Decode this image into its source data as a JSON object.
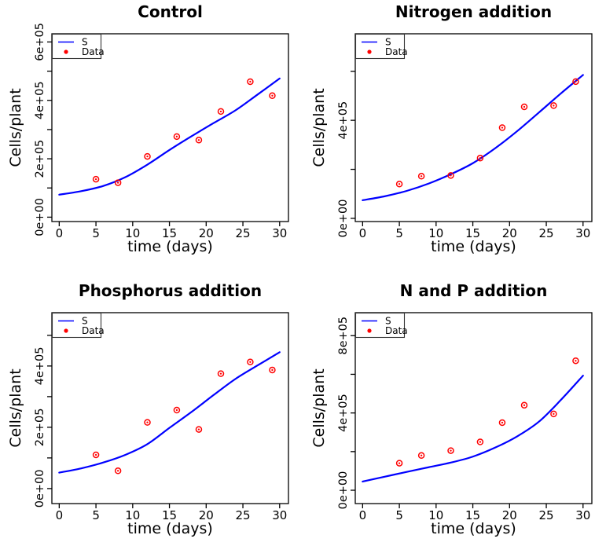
{
  "figure": {
    "background": "#ffffff",
    "text_color": "#000000",
    "curve_color": "#0000ff",
    "point_color": "#ff0000"
  },
  "chart_data": [
    {
      "type": "line",
      "title": "Control",
      "xlabel": "time (days)",
      "ylabel": "Cells/plant",
      "xlim": [
        -1,
        31.2
      ],
      "ylim": [
        -15000,
        628000
      ],
      "grid": false,
      "x_ticks": [
        {
          "v": 0,
          "label": "0"
        },
        {
          "v": 5,
          "label": "5"
        },
        {
          "v": 10,
          "label": "10"
        },
        {
          "v": 15,
          "label": "15"
        },
        {
          "v": 20,
          "label": "20"
        },
        {
          "v": 25,
          "label": "25"
        },
        {
          "v": 30,
          "label": "30"
        }
      ],
      "y_ticks": [
        {
          "v": 0,
          "label": "0e+00"
        },
        {
          "v": 100000,
          "label": ""
        },
        {
          "v": 200000,
          "label": "2e+05"
        },
        {
          "v": 300000,
          "label": ""
        },
        {
          "v": 400000,
          "label": "4e+05"
        },
        {
          "v": 500000,
          "label": ""
        },
        {
          "v": 600000,
          "label": "6e+05"
        }
      ],
      "legend": {
        "position": "topleft",
        "entries": [
          {
            "label": "S",
            "marker": "line",
            "color": "#0000ff"
          },
          {
            "label": "Data",
            "marker": "point",
            "color": "#ff0000"
          }
        ]
      },
      "series": [
        {
          "name": "S",
          "kind": "line",
          "color": "#0000ff",
          "x": [
            0,
            3,
            6,
            9,
            12,
            15,
            18,
            21,
            24,
            27,
            30
          ],
          "y": [
            77000,
            89000,
            107000,
            137000,
            180000,
            230000,
            277000,
            322000,
            366000,
            420000,
            475000
          ]
        },
        {
          "name": "Data",
          "kind": "points",
          "color": "#ff0000",
          "x": [
            5,
            8,
            12,
            16,
            19,
            22,
            26,
            29
          ],
          "y": [
            130000,
            118000,
            208000,
            276000,
            264000,
            362000,
            464000,
            416000
          ]
        }
      ]
    },
    {
      "type": "line",
      "title": "Nitrogen addition",
      "xlabel": "time (days)",
      "ylabel": "Cells/plant",
      "xlim": [
        -1,
        31.2
      ],
      "ylim": [
        -13000,
        753000
      ],
      "grid": false,
      "x_ticks": [
        {
          "v": 0,
          "label": "0"
        },
        {
          "v": 5,
          "label": "5"
        },
        {
          "v": 10,
          "label": "10"
        },
        {
          "v": 15,
          "label": "15"
        },
        {
          "v": 20,
          "label": "20"
        },
        {
          "v": 25,
          "label": "25"
        },
        {
          "v": 30,
          "label": "30"
        }
      ],
      "y_ticks": [
        {
          "v": 0,
          "label": "0e+00"
        },
        {
          "v": 200000,
          "label": ""
        },
        {
          "v": 400000,
          "label": "4e+05"
        },
        {
          "v": 600000,
          "label": ""
        }
      ],
      "legend": {
        "position": "topleft",
        "entries": [
          {
            "label": "S",
            "marker": "line",
            "color": "#0000ff"
          },
          {
            "label": "Data",
            "marker": "point",
            "color": "#ff0000"
          }
        ]
      },
      "series": [
        {
          "name": "S",
          "kind": "line",
          "color": "#0000ff",
          "x": [
            0,
            3,
            6,
            9,
            12,
            15,
            18,
            21,
            24,
            27,
            30
          ],
          "y": [
            74000,
            90000,
            112000,
            142000,
            180000,
            225000,
            285000,
            355000,
            432000,
            510000,
            585000
          ]
        },
        {
          "name": "Data",
          "kind": "points",
          "color": "#ff0000",
          "x": [
            5,
            8,
            12,
            16,
            19,
            22,
            26,
            29
          ],
          "y": [
            140000,
            172000,
            175000,
            246000,
            370000,
            455000,
            460000,
            558000
          ]
        }
      ]
    },
    {
      "type": "line",
      "title": "Phosphorus addition",
      "xlabel": "time (days)",
      "ylabel": "Cells/plant",
      "xlim": [
        -1,
        31.2
      ],
      "ylim": [
        -49000,
        574000
      ],
      "grid": false,
      "x_ticks": [
        {
          "v": 0,
          "label": "0"
        },
        {
          "v": 5,
          "label": "5"
        },
        {
          "v": 10,
          "label": "10"
        },
        {
          "v": 15,
          "label": "15"
        },
        {
          "v": 20,
          "label": "20"
        },
        {
          "v": 25,
          "label": "25"
        },
        {
          "v": 30,
          "label": "30"
        }
      ],
      "y_ticks": [
        {
          "v": 0,
          "label": "0e+00"
        },
        {
          "v": 100000,
          "label": ""
        },
        {
          "v": 200000,
          "label": "2e+05"
        },
        {
          "v": 300000,
          "label": ""
        },
        {
          "v": 400000,
          "label": "4e+05"
        },
        {
          "v": 500000,
          "label": ""
        }
      ],
      "legend": {
        "position": "topleft",
        "entries": [
          {
            "label": "S",
            "marker": "line",
            "color": "#0000ff"
          },
          {
            "label": "Data",
            "marker": "point",
            "color": "#ff0000"
          }
        ]
      },
      "series": [
        {
          "name": "S",
          "kind": "line",
          "color": "#0000ff",
          "x": [
            0,
            3,
            6,
            9,
            12,
            15,
            18,
            21,
            24,
            27,
            30
          ],
          "y": [
            52000,
            66000,
            85000,
            110000,
            145000,
            198000,
            250000,
            305000,
            358000,
            402000,
            445000
          ]
        },
        {
          "name": "Data",
          "kind": "points",
          "color": "#ff0000",
          "x": [
            5,
            8,
            12,
            16,
            19,
            22,
            26,
            29
          ],
          "y": [
            110000,
            58000,
            216000,
            256000,
            193000,
            375000,
            413000,
            387000
          ]
        }
      ]
    },
    {
      "type": "line",
      "title": "N and P addition",
      "xlabel": "time (days)",
      "ylabel": "Cells/plant",
      "xlim": [
        -1,
        31.2
      ],
      "ylim": [
        -69000,
        919000
      ],
      "grid": false,
      "x_ticks": [
        {
          "v": 0,
          "label": "0"
        },
        {
          "v": 5,
          "label": "5"
        },
        {
          "v": 10,
          "label": "10"
        },
        {
          "v": 15,
          "label": "15"
        },
        {
          "v": 20,
          "label": "20"
        },
        {
          "v": 25,
          "label": "25"
        },
        {
          "v": 30,
          "label": "30"
        }
      ],
      "y_ticks": [
        {
          "v": 0,
          "label": "0e+00"
        },
        {
          "v": 200000,
          "label": ""
        },
        {
          "v": 400000,
          "label": "4e+05"
        },
        {
          "v": 600000,
          "label": ""
        },
        {
          "v": 800000,
          "label": "8e+05"
        }
      ],
      "legend": {
        "position": "topleft",
        "entries": [
          {
            "label": "S",
            "marker": "line",
            "color": "#0000ff"
          },
          {
            "label": "Data",
            "marker": "point",
            "color": "#ff0000"
          }
        ]
      },
      "series": [
        {
          "name": "S",
          "kind": "line",
          "color": "#0000ff",
          "x": [
            0,
            3,
            6,
            9,
            12,
            15,
            18,
            21,
            24,
            27,
            30
          ],
          "y": [
            45000,
            70000,
            95000,
            119000,
            143000,
            174000,
            220000,
            278000,
            355000,
            468000,
            593000
          ]
        },
        {
          "name": "Data",
          "kind": "points",
          "color": "#ff0000",
          "x": [
            5,
            8,
            12,
            16,
            19,
            22,
            26,
            29
          ],
          "y": [
            140000,
            180000,
            205000,
            250000,
            350000,
            440000,
            395000,
            670000
          ]
        }
      ]
    }
  ]
}
